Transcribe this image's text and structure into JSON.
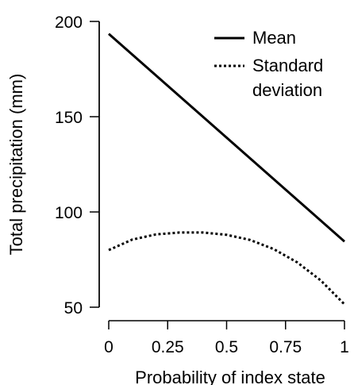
{
  "chart_data": {
    "type": "line",
    "xlabel": "Probability of index state",
    "ylabel": "Total precipitation (mm)",
    "xlim": [
      0,
      1
    ],
    "ylim": [
      50,
      200
    ],
    "x_ticks": [
      0,
      0.25,
      0.5,
      0.75,
      1
    ],
    "x_tick_labels": [
      "0",
      "0.25",
      "0.5",
      "0.75",
      "1"
    ],
    "y_ticks": [
      50,
      100,
      150,
      200
    ],
    "y_tick_labels": [
      "50",
      "100",
      "150",
      "200"
    ],
    "grid": false,
    "legend_position": "top-right",
    "legend_lines": [
      [
        "Mean"
      ],
      [
        "Standard",
        "deviation"
      ]
    ],
    "series": [
      {
        "name": "Mean",
        "style": "solid",
        "color": "#000000",
        "x": [
          0,
          1
        ],
        "y": [
          193.5,
          84.5
        ]
      },
      {
        "name": "Standard deviation",
        "style": "dotted",
        "color": "#000000",
        "x": [
          0,
          0.1,
          0.2,
          0.3,
          0.4,
          0.5,
          0.6,
          0.7,
          0.8,
          0.9,
          1
        ],
        "y": [
          80,
          85.5,
          88.2,
          89.2,
          89.2,
          88,
          85.3,
          80.5,
          73.5,
          64,
          51.5
        ]
      }
    ]
  }
}
